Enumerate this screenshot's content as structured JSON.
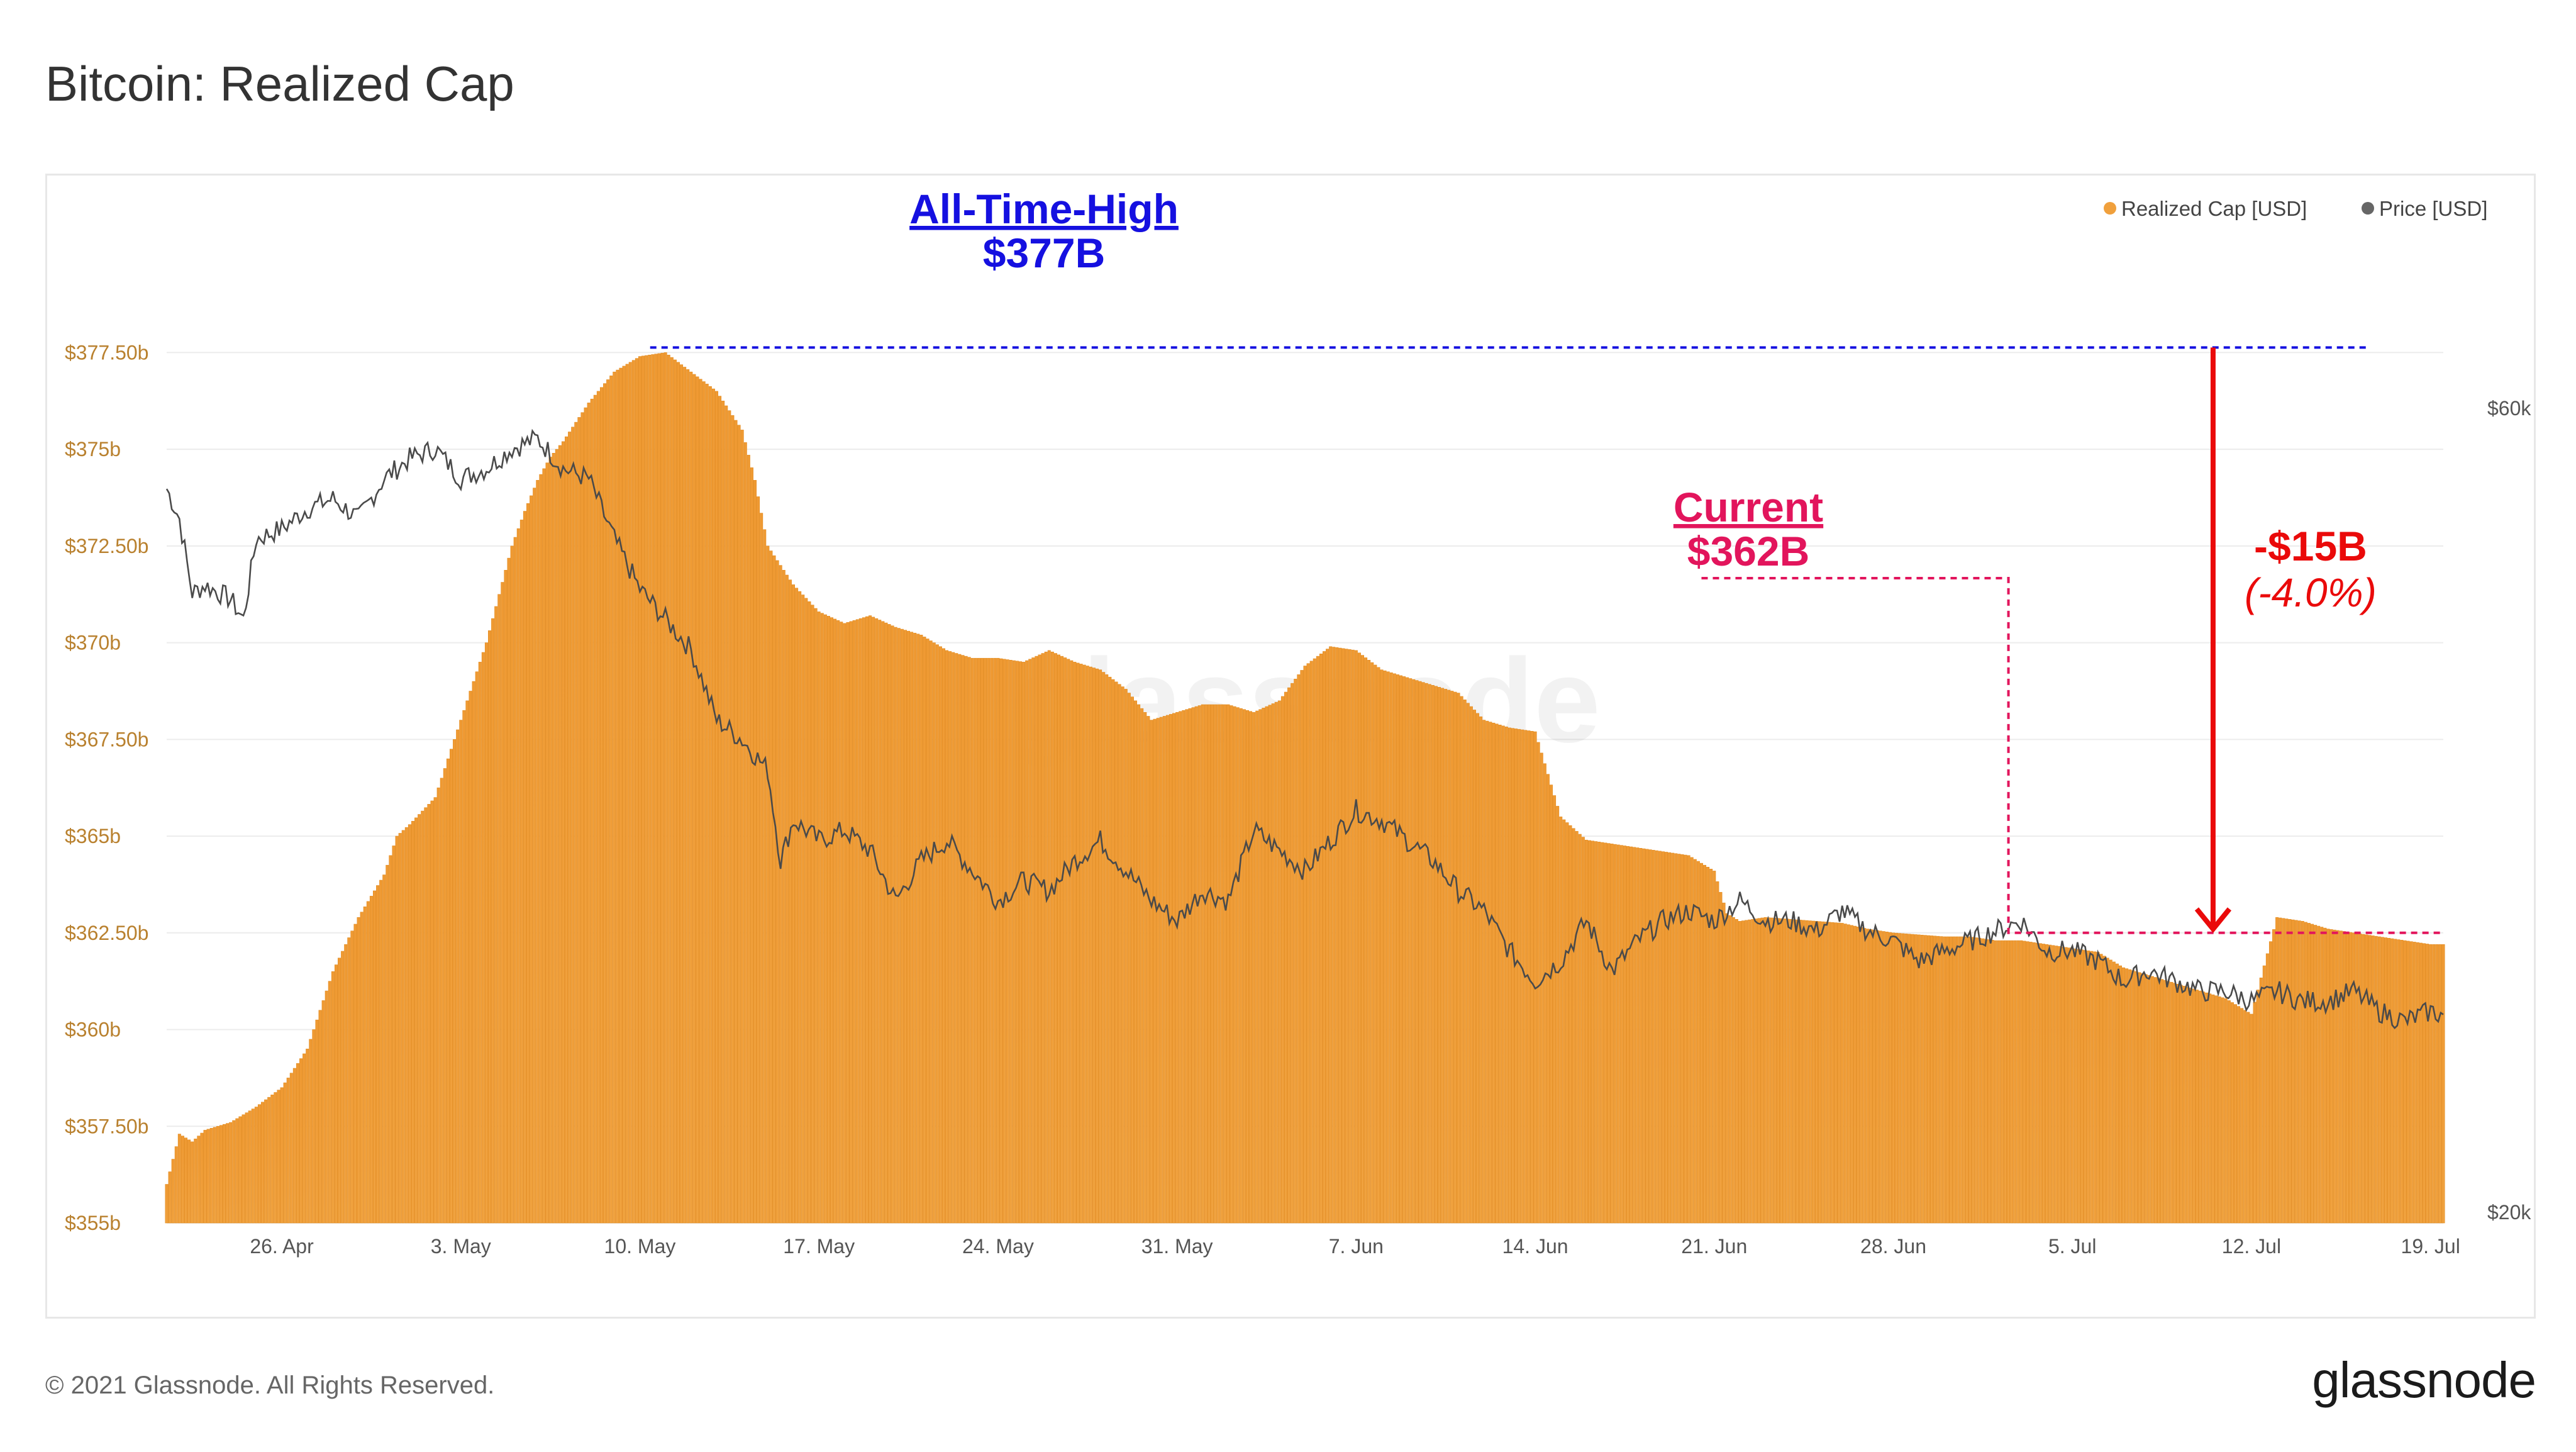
{
  "page": {
    "title": "Bitcoin: Realized Cap",
    "copyright": "© 2021 Glassnode. All Rights Reserved.",
    "brand": "glassnode"
  },
  "chart_data": {
    "type": "area",
    "watermark": "glassnode",
    "legend": [
      {
        "label": "Realized Cap [USD]",
        "color": "#f0a03c"
      },
      {
        "label": "Price [USD]",
        "color": "#666666"
      }
    ],
    "left_axis_ticks": [
      {
        "value": 355.0,
        "label": "$355b"
      },
      {
        "value": 357.5,
        "label": "$357.50b"
      },
      {
        "value": 360.0,
        "label": "$360b"
      },
      {
        "value": 362.5,
        "label": "$362.50b"
      },
      {
        "value": 365.0,
        "label": "$365b"
      },
      {
        "value": 367.5,
        "label": "$367.50b"
      },
      {
        "value": 370.0,
        "label": "$370b"
      },
      {
        "value": 372.5,
        "label": "$372.50b"
      },
      {
        "value": 375.0,
        "label": "$375b"
      },
      {
        "value": 377.5,
        "label": "$377.50b"
      }
    ],
    "left_axis_range": [
      355,
      379.8
    ],
    "right_axis_ticks": [
      {
        "value": 20000,
        "label": "$20k"
      },
      {
        "value": 60000,
        "label": "$60k"
      }
    ],
    "x_axis_labels": [
      "26. Apr",
      "3. May",
      "10. May",
      "17. May",
      "24. May",
      "31. May",
      "7. Jun",
      "14. Jun",
      "21. Jun",
      "28. Jun",
      "5. Jul",
      "12. Jul",
      "19. Jul"
    ],
    "x_day_range": [
      -4.5,
      84.5
    ],
    "series": [
      {
        "name": "Realized Cap [USD]",
        "x_days": [
          -4.5,
          -4,
          -3.5,
          -3,
          -2,
          -1,
          0,
          1,
          2,
          3,
          4,
          4.5,
          5,
          6,
          7,
          8,
          9,
          9.5,
          10,
          10.5,
          11,
          12,
          13,
          14,
          15,
          16,
          17,
          18,
          18.5,
          19,
          20,
          21,
          22,
          23,
          24,
          25,
          26,
          27,
          28,
          29,
          30,
          31,
          32,
          33,
          34,
          35,
          36,
          37,
          38,
          39,
          40,
          41,
          42,
          43,
          44,
          45,
          46,
          47,
          48,
          49,
          50,
          51,
          52,
          53,
          54,
          55,
          56,
          56.5,
          57,
          58,
          59,
          60,
          61,
          62,
          63,
          64,
          65,
          66,
          67,
          68,
          69,
          70,
          71,
          72,
          73,
          74,
          75,
          76,
          77,
          78,
          79,
          79.5,
          80,
          81,
          82,
          83,
          84,
          84.5
        ],
        "values": [
          356.0,
          357.3,
          357.1,
          357.4,
          357.6,
          358.0,
          358.5,
          359.5,
          361.5,
          362.9,
          364.0,
          365.0,
          365.3,
          366.0,
          368.0,
          370.0,
          372.5,
          373.4,
          374.2,
          374.8,
          375.2,
          376.2,
          377.0,
          377.4,
          377.5,
          377.0,
          376.5,
          375.5,
          374.2,
          372.5,
          371.5,
          370.8,
          370.5,
          370.7,
          370.4,
          370.2,
          369.8,
          369.6,
          369.6,
          369.5,
          369.8,
          369.5,
          369.3,
          368.8,
          368.0,
          368.2,
          368.4,
          368.4,
          368.2,
          368.5,
          369.4,
          369.9,
          369.8,
          369.3,
          369.1,
          368.9,
          368.7,
          368.0,
          367.8,
          367.7,
          365.5,
          364.9,
          364.8,
          364.7,
          364.6,
          364.5,
          364.1,
          363.0,
          362.8,
          362.9,
          362.85,
          362.8,
          362.75,
          362.6,
          362.5,
          362.45,
          362.4,
          362.4,
          362.3,
          362.3,
          362.2,
          362.1,
          362.0,
          361.6,
          361.4,
          361.2,
          361.0,
          360.8,
          360.4,
          362.9,
          362.8,
          362.7,
          362.6,
          362.5,
          362.4,
          362.3,
          362.2,
          362.2
        ]
      },
      {
        "name": "Price [USD]",
        "x_days": [
          -4.5,
          -4,
          -3.5,
          -3,
          -2,
          -1.5,
          -1,
          0,
          1,
          2,
          3,
          4,
          5,
          6,
          7,
          8,
          9,
          10,
          11,
          12,
          13,
          14,
          15,
          16,
          17,
          18,
          19,
          19.5,
          20,
          21,
          22,
          23,
          24,
          25,
          26,
          27,
          28,
          29,
          30,
          31,
          32,
          33,
          34,
          35,
          36,
          37,
          38,
          39,
          40,
          41,
          42,
          43,
          44,
          45,
          46,
          47,
          48,
          49,
          50,
          51,
          52,
          53,
          54,
          55,
          56,
          57,
          58,
          59,
          60,
          61,
          62,
          63,
          64,
          65,
          66,
          67,
          68,
          69,
          70,
          71,
          72,
          73,
          74,
          75,
          76,
          77,
          78,
          79,
          80,
          81,
          82,
          83,
          84,
          84.5
        ],
        "values": [
          56000,
          54500,
          50800,
          51200,
          50500,
          49500,
          53500,
          54000,
          55000,
          55500,
          54500,
          56500,
          57500,
          58000,
          56500,
          57000,
          58000,
          58500,
          57000,
          56500,
          53500,
          51000,
          49500,
          48000,
          44500,
          43500,
          42000,
          37500,
          39500,
          38500,
          39000,
          38000,
          35500,
          37500,
          38500,
          37000,
          35500,
          36500,
          36000,
          37500,
          38500,
          37000,
          35500,
          34500,
          36000,
          35500,
          39000,
          38000,
          37000,
          38500,
          40000,
          39500,
          38500,
          37500,
          36000,
          35000,
          33000,
          31500,
          32500,
          34500,
          32000,
          33500,
          34500,
          35000,
          34500,
          35500,
          34500,
          34500,
          34000,
          35000,
          34000,
          33500,
          32500,
          33000,
          33500,
          34000,
          34500,
          33000,
          33000,
          32500,
          31500,
          32000,
          31500,
          31000,
          31000,
          30500,
          31000,
          30500,
          30500,
          31000,
          30000,
          29500,
          30000,
          29800
        ]
      }
    ],
    "annotations": {
      "ath_label": "All-Time-High",
      "ath_value_label": "$377B",
      "ath_value": 377.5,
      "current_label": "Current",
      "current_value_label": "$362B",
      "current_value": 362.5,
      "change_label": "-$15B",
      "change_pct_label": "(-4.0%)"
    }
  }
}
